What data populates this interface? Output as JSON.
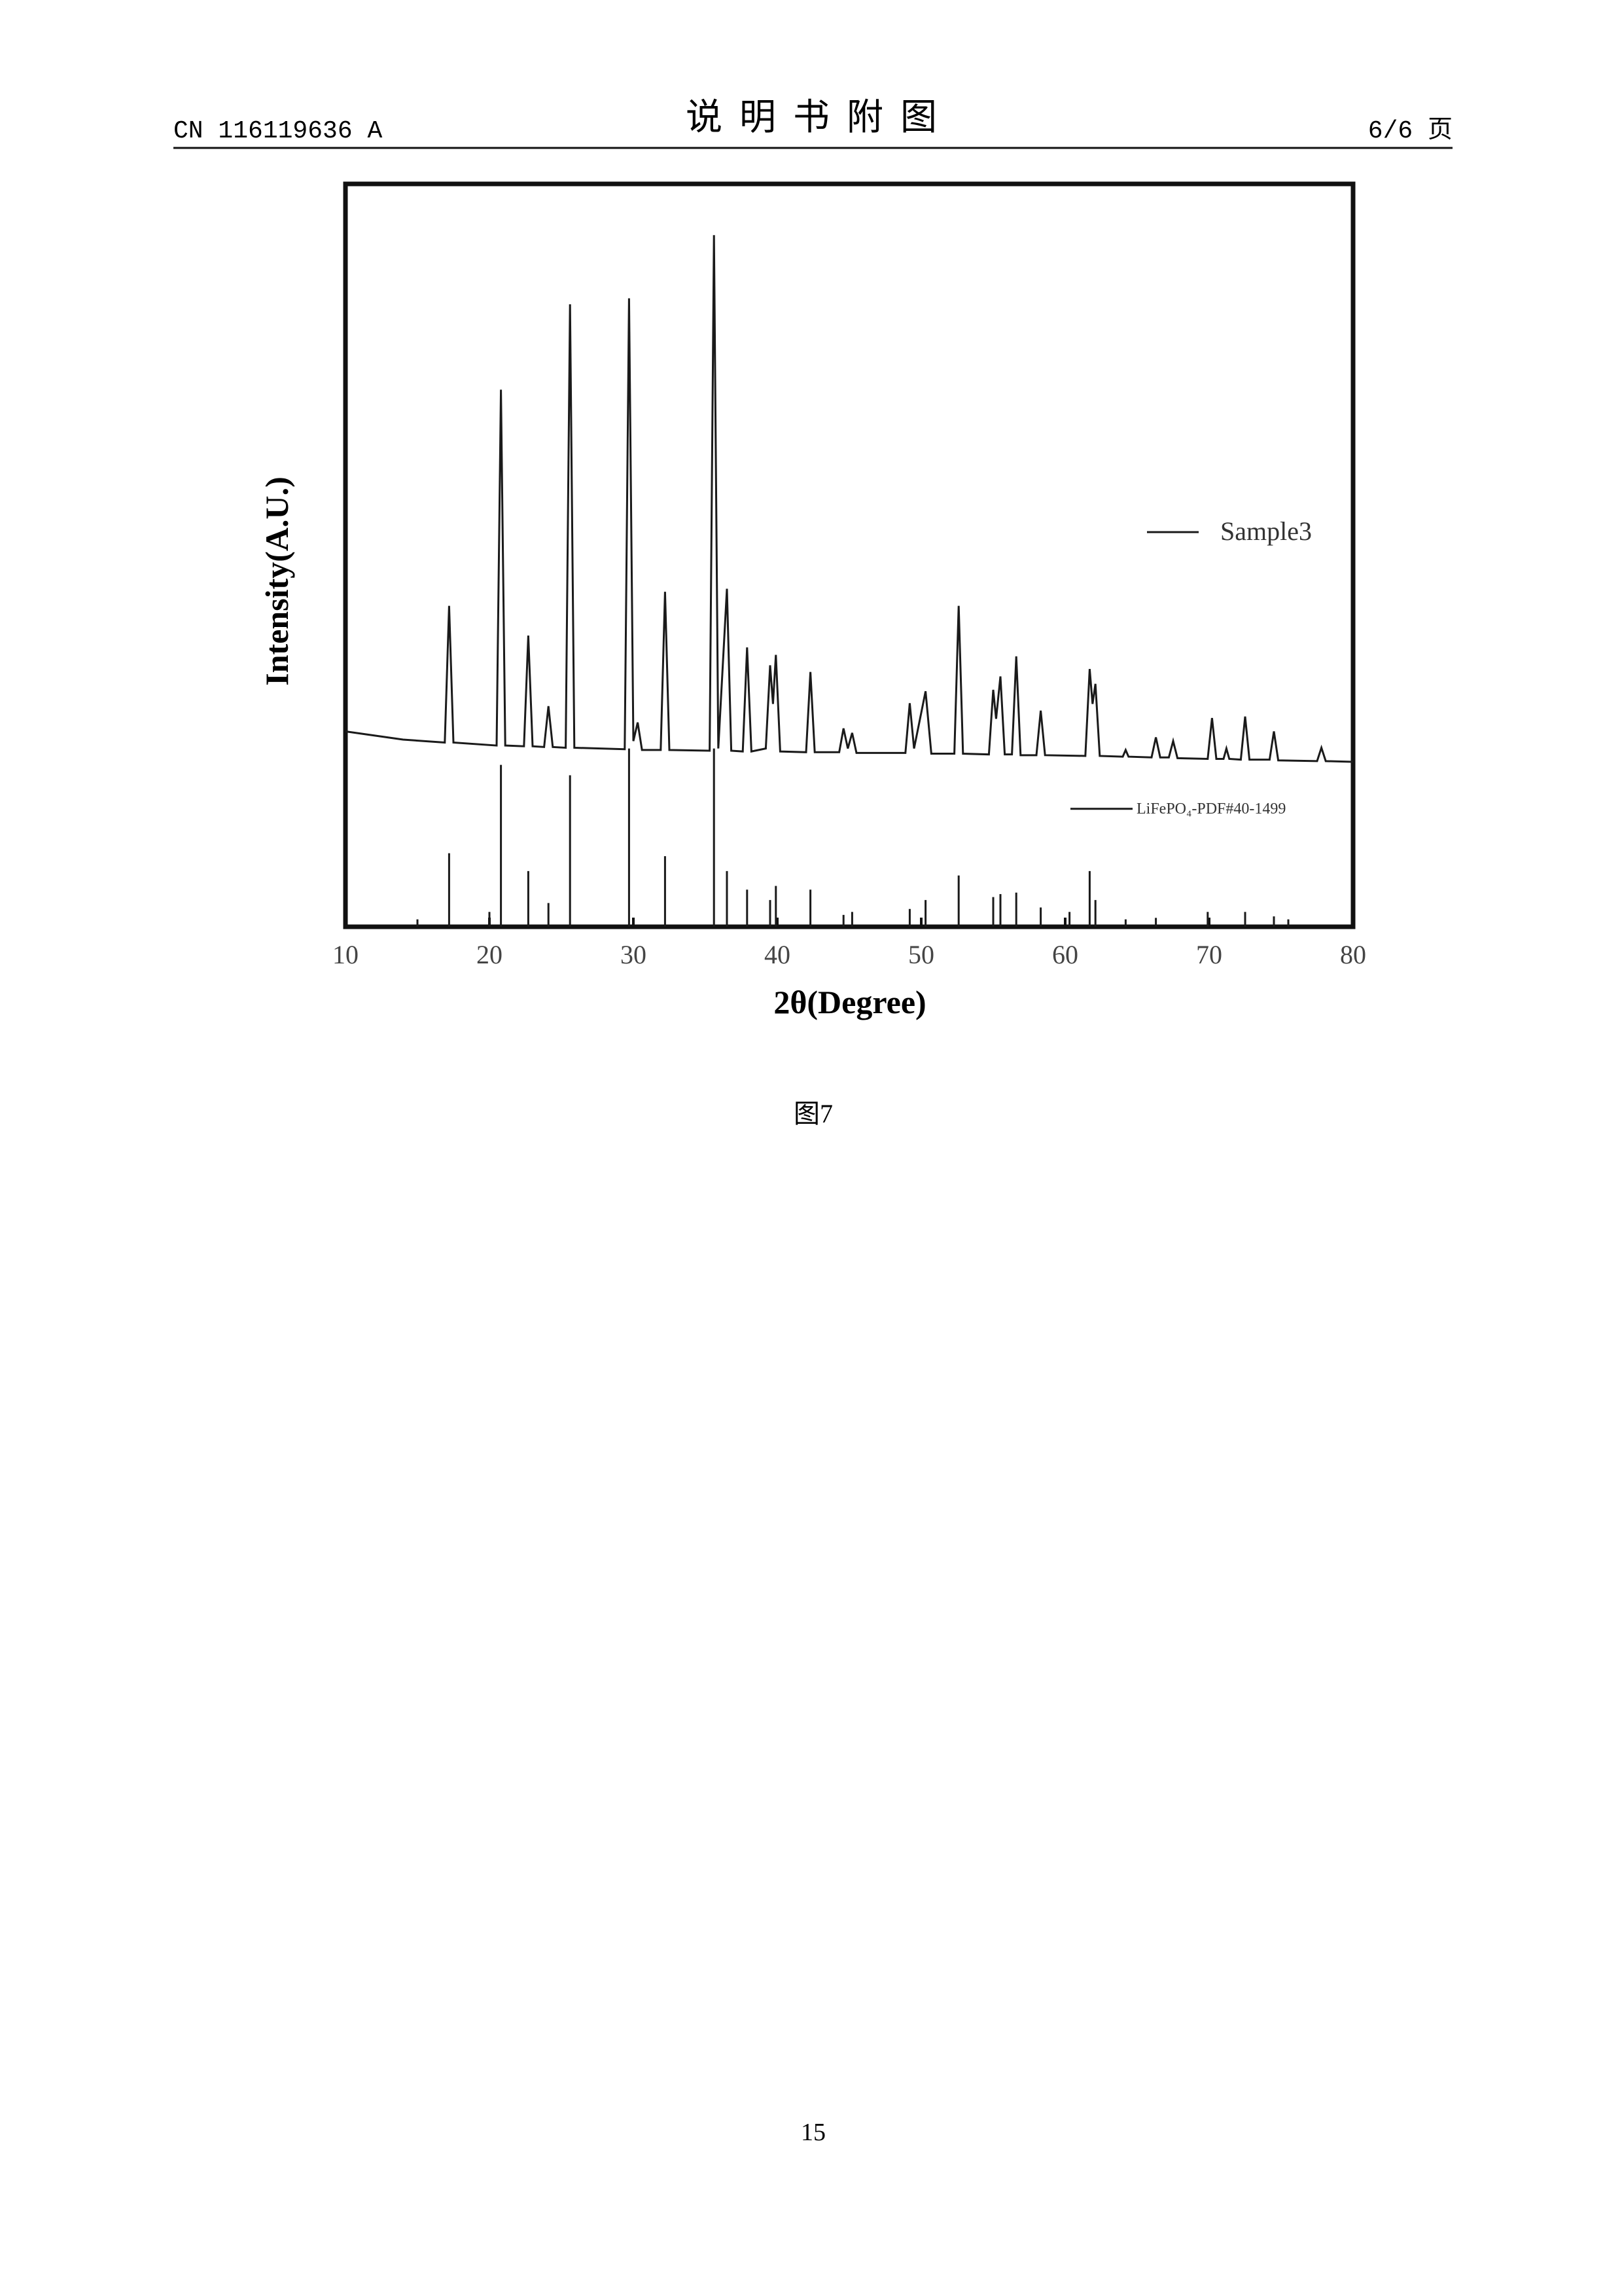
{
  "header": {
    "left": "CN 116119636 A",
    "title": "说 明 书 附 图",
    "right": "6/6 页"
  },
  "chart_data": {
    "type": "line",
    "xlabel": "2θ(Degree)",
    "ylabel": "Intensity(A.U.)",
    "xlim": [
      10,
      80
    ],
    "xticks": [
      10,
      20,
      30,
      40,
      50,
      60,
      70,
      80
    ],
    "ylim": [
      0,
      100
    ],
    "series": [
      {
        "name": "Sample3",
        "type": "line",
        "color": "#1a1a1a",
        "x": [
          10,
          14,
          16.9,
          17.2,
          17.5,
          20.5,
          20.8,
          21.1,
          22.4,
          22.7,
          23.0,
          23.8,
          24.1,
          24.4,
          25.3,
          25.6,
          25.9,
          29.4,
          29.7,
          30.0,
          30.3,
          30.6,
          31.9,
          32.2,
          32.5,
          35.3,
          35.6,
          35.9,
          36.5,
          36.8,
          37.6,
          37.9,
          38.2,
          39.2,
          39.5,
          39.7,
          39.9,
          40.2,
          42.0,
          42.3,
          42.6,
          44.3,
          44.6,
          44.9,
          45.2,
          45.5,
          46.5,
          48.9,
          49.2,
          49.5,
          50.3,
          50.7,
          52.3,
          52.6,
          52.9,
          54.7,
          55.0,
          55.2,
          55.5,
          55.8,
          56.3,
          56.6,
          56.9,
          58.0,
          58.3,
          58.6,
          61.4,
          61.7,
          61.9,
          62.1,
          62.4,
          64.0,
          64.2,
          64.4,
          66.0,
          66.3,
          66.6,
          67.2,
          67.5,
          67.8,
          69.9,
          70.2,
          70.5,
          71.0,
          71.2,
          71.4,
          72.2,
          72.5,
          72.8,
          74.2,
          74.5,
          74.8,
          77.5,
          77.8,
          78.1,
          80
        ],
        "values": [
          26.3,
          25.2,
          24.8,
          43.2,
          24.8,
          24.4,
          72.3,
          24.4,
          24.3,
          39.2,
          24.3,
          24.2,
          29.7,
          24.2,
          24.1,
          83.8,
          24.1,
          23.9,
          84.6,
          25,
          27.5,
          23.8,
          23.8,
          45.1,
          23.8,
          23.7,
          93.1,
          24,
          45.5,
          23.7,
          23.6,
          37.6,
          23.6,
          24,
          35.2,
          30,
          36.6,
          23.6,
          23.5,
          34.3,
          23.5,
          23.5,
          26.7,
          24,
          26.1,
          23.4,
          23.4,
          23.4,
          30.1,
          24,
          31.7,
          23.3,
          23.3,
          43.2,
          23.3,
          23.2,
          31.9,
          28,
          33.7,
          23.2,
          23.2,
          36.4,
          23.1,
          23.1,
          29.1,
          23.1,
          23.0,
          34.7,
          30,
          32.7,
          23.0,
          22.9,
          23.8,
          22.9,
          22.8,
          25.5,
          22.8,
          22.8,
          25,
          22.7,
          22.6,
          28.1,
          22.6,
          22.6,
          24,
          22.6,
          22.5,
          28.3,
          22.5,
          22.5,
          26.3,
          22.4,
          22.3,
          24.1,
          22.3,
          22.2
        ]
      },
      {
        "name": "LiFePO₄-PDF#40-1499",
        "type": "stem",
        "color": "#1a1a1a",
        "x": [
          15.0,
          17.2,
          20.0,
          20.8,
          22.7,
          24.1,
          25.6,
          29.7,
          32.2,
          35.6,
          36.5,
          37.9,
          39.5,
          39.9,
          42.3,
          44.6,
          45.2,
          49.2,
          50.3,
          52.6,
          55.0,
          55.5,
          56.6,
          58.3,
          60.3,
          61.7,
          62.1,
          64.2,
          66.3,
          69.9,
          72.5,
          74.5,
          75.5
        ],
        "values": [
          1,
          9.9,
          2,
          21.8,
          7.5,
          3.2,
          20.4,
          24,
          9.5,
          24,
          7.5,
          5,
          3.6,
          5.5,
          5,
          1.6,
          2,
          2.4,
          3.6,
          6.9,
          4,
          4.4,
          4.6,
          2.6,
          2,
          7.5,
          3.6,
          1,
          1.2,
          2,
          2,
          1.4,
          1
        ]
      }
    ]
  },
  "caption": "图7",
  "page_number": "15"
}
